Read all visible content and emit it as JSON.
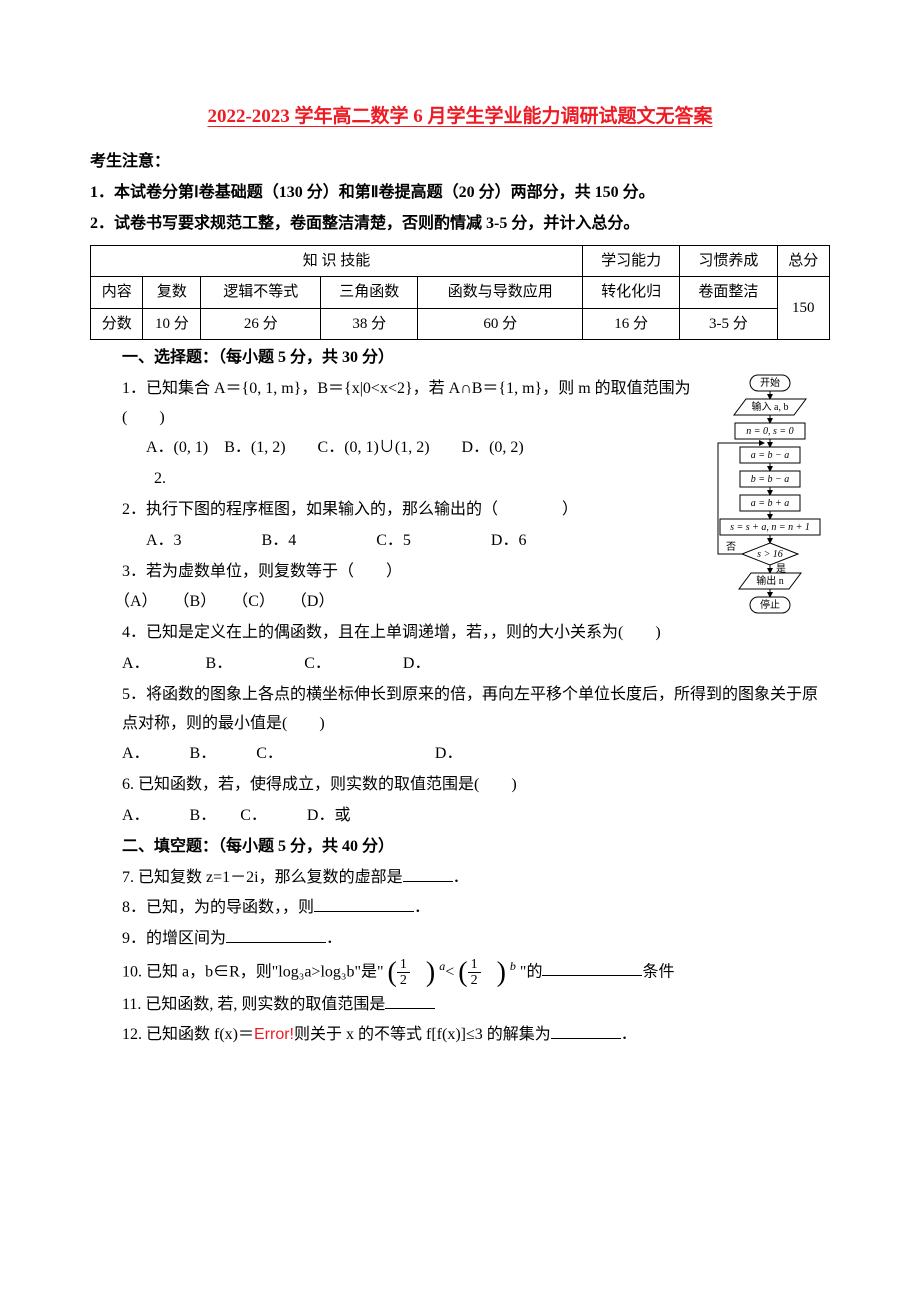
{
  "title": "2022-2023 学年高二数学 6 月学生学业能力调研试题文无答案",
  "notice_header": "考生注意：",
  "notice_1": "1．本试卷分第Ⅰ卷基础题（130 分）和第Ⅱ卷提高题（20 分）两部分，共 150 分。",
  "notice_2": "2．试卷书写要求规范工整，卷面整洁清楚，否则酌情减 3-5 分，并计入总分。",
  "table": {
    "header_main": "知 识 技能",
    "header_learn": "学习能力",
    "header_habit": "习惯养成",
    "header_total": "总分",
    "row_content_label": "内容",
    "row_content": [
      "复数",
      "逻辑不等式",
      "三角函数",
      "函数与导数应用",
      "转化化归",
      "卷面整洁"
    ],
    "row_score_label": "分数",
    "row_score": [
      "10 分",
      "26 分",
      "38 分",
      "60 分",
      "16 分",
      "3-5 分"
    ],
    "total": "150"
  },
  "section1_header": "一、选择题：（每小题 5 分，共 30 分）",
  "q1_a": "1．已知集合 A＝{0, 1, m}，B＝{x|0<x<2}，若 A∩B＝{1, m}，则 m 的取值范围为(　　)",
  "q1_b": "A．(0, 1)　B．(1, 2)　　C．(0, 1)∪(1, 2)　　D．(0, 2)",
  "q1_c": "2.",
  "q2_a": "2．执行下图的程序框图，如果输入的，那么输出的（　　　　）",
  "q2_b": "A．3　　　　　B．4　　　　　C．5　　　　　D．6",
  "q3_a": "3．若为虚数单位，则复数等于（　　）",
  "q3_b": "（A）　　（B）　　（C）　　（D）",
  "q4_a": "4．已知是定义在上的偶函数，且在上单调递增，若，，则的大小关系为(　　)",
  "q4_b": "A．　　　　B．　　　　　C．　　　　　D．",
  "q5_a": "5．将函数的图象上各点的横坐标伸长到原来的倍，再向左平移个单位长度后，所得到的图象关于原点对称，则的最小值是(　　)",
  "q5_b": "A．　　　B．　　　C．　　　　　　　　　　D．",
  "q6_a": "6. 已知函数，若，使得成立，则实数的取值范围是(　　)",
  "q6_b": "A．　　　B．　　C．　　　D．或",
  "section2_header": "二、填空题：（每小题 5 分，共 40 分）",
  "q7": "7. 已知复数 z=1－2i，那么复数的虚部是",
  "q8": "8．已知，为的导函数，，则",
  "q9": "9．的增区间为",
  "q10_a": "10. 已知 a，b∈R，则\"log₃a>log₃b\"是\"",
  "q10_b": "\"的",
  "q10_c": "条件",
  "q11": "11. 已知函数, 若, 则实数的取值范围是",
  "q12_a": "12. 已知函数 f(x)＝",
  "q12_err": "Error!",
  "q12_b": "则关于 x 的不等式 f[f(x)]≤3 的解集为",
  "flowchart": {
    "labels": [
      "开始",
      "输入 a, b",
      "n = 0, s = 0",
      "a = b − a",
      "b = b − a",
      "a = b + a",
      "s = s + a, n = n + 1",
      "s > 16",
      "输出 n",
      "停止"
    ],
    "yes": "是",
    "no": "否",
    "box_stroke": "#000000",
    "box_fill": "#ffffff",
    "text_color": "#000000",
    "font_size": 10
  }
}
